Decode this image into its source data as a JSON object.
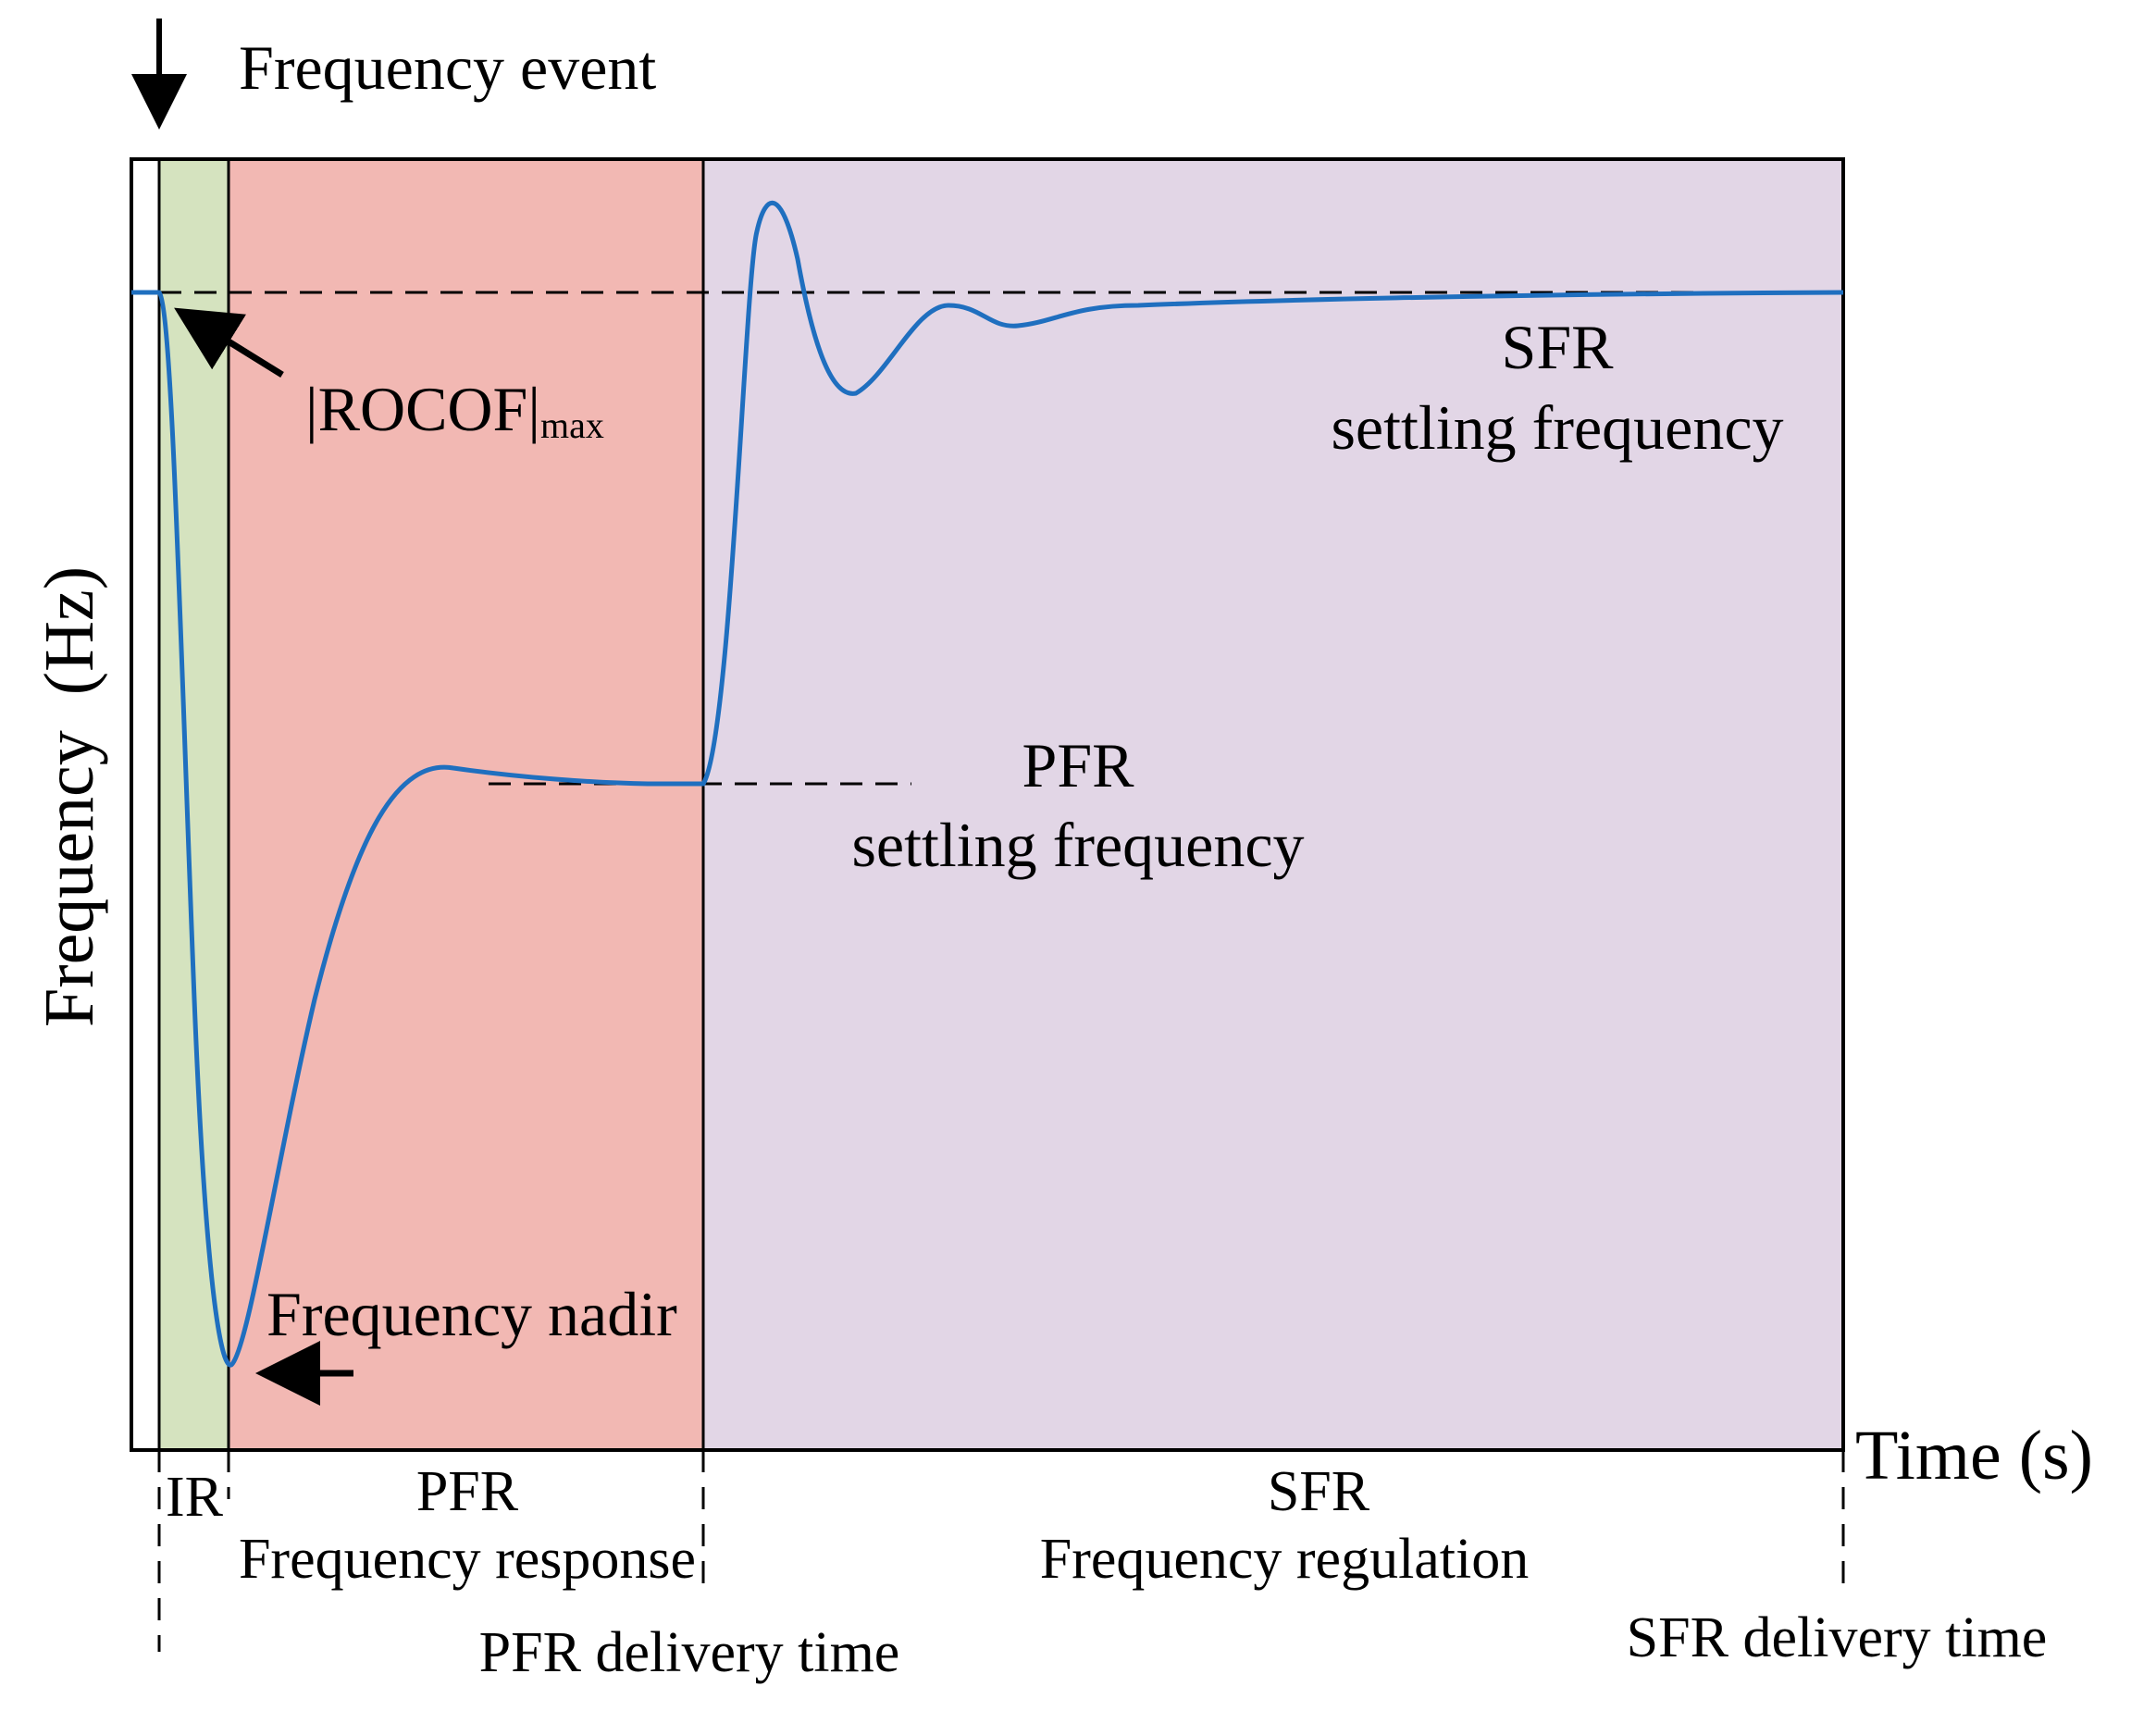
{
  "annotations": {
    "frequency_event": "Frequency event",
    "rocof_main": "|ROCOF|",
    "rocof_sub": "max",
    "frequency_nadir": "Frequency nadir",
    "pfr_settling_line1": "PFR",
    "pfr_settling_line2": "settling frequency",
    "sfr_settling_line1": "SFR",
    "sfr_settling_line2": "settling frequency"
  },
  "axes": {
    "x_label": "Time (s)",
    "y_label": "Frequency  (Hz)"
  },
  "regions": [
    {
      "label": "IR",
      "color": "#d5e3bf"
    },
    {
      "label": "PFR",
      "sublabel": "Frequency response",
      "color": "#f2b8b3"
    },
    {
      "label": "SFR",
      "sublabel": "Frequency regulation",
      "color": "#e2d6e6"
    }
  ],
  "delivery_times": {
    "pfr": "PFR delivery time",
    "sfr": "SFR delivery time"
  },
  "colors": {
    "curve": "#1f6fbf",
    "border": "#000000"
  }
}
